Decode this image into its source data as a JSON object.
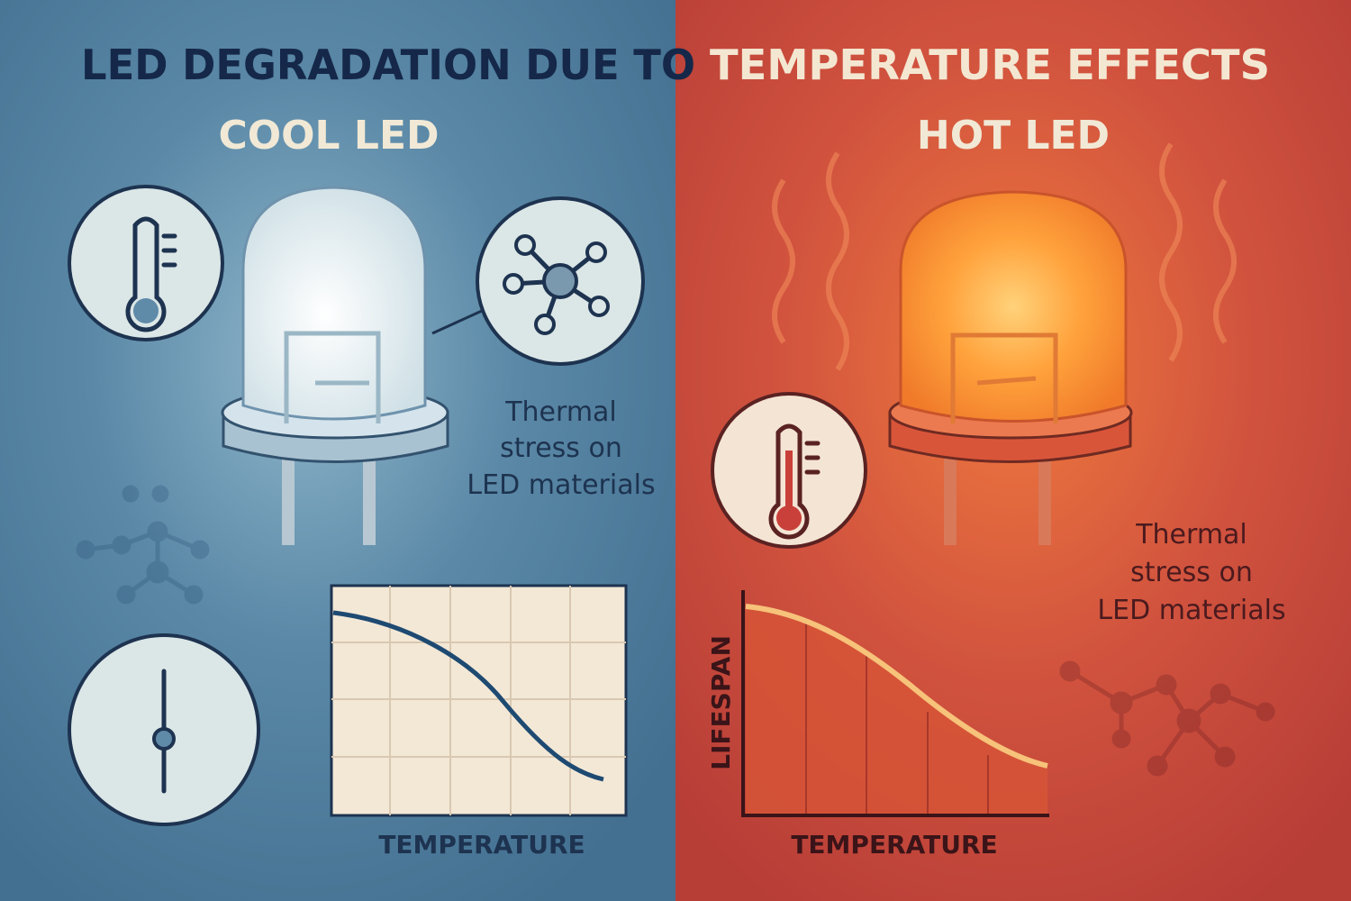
{
  "title": {
    "left": "LED DEGRADATION DUE TO",
    "right": "TEMPERATURE  EFFECTS"
  },
  "cool_panel": {
    "heading": "COOL LED",
    "caption": [
      "Thermal",
      "stress on",
      "LED materials"
    ],
    "chart": {
      "x_label": "TEMPERATURE"
    }
  },
  "hot_panel": {
    "heading": "HOT LED",
    "caption": [
      "Thermal",
      "stress on",
      "LED materials"
    ],
    "chart": {
      "x_label": "TEMPERATURE",
      "y_label": "LIFESPAN"
    }
  }
}
